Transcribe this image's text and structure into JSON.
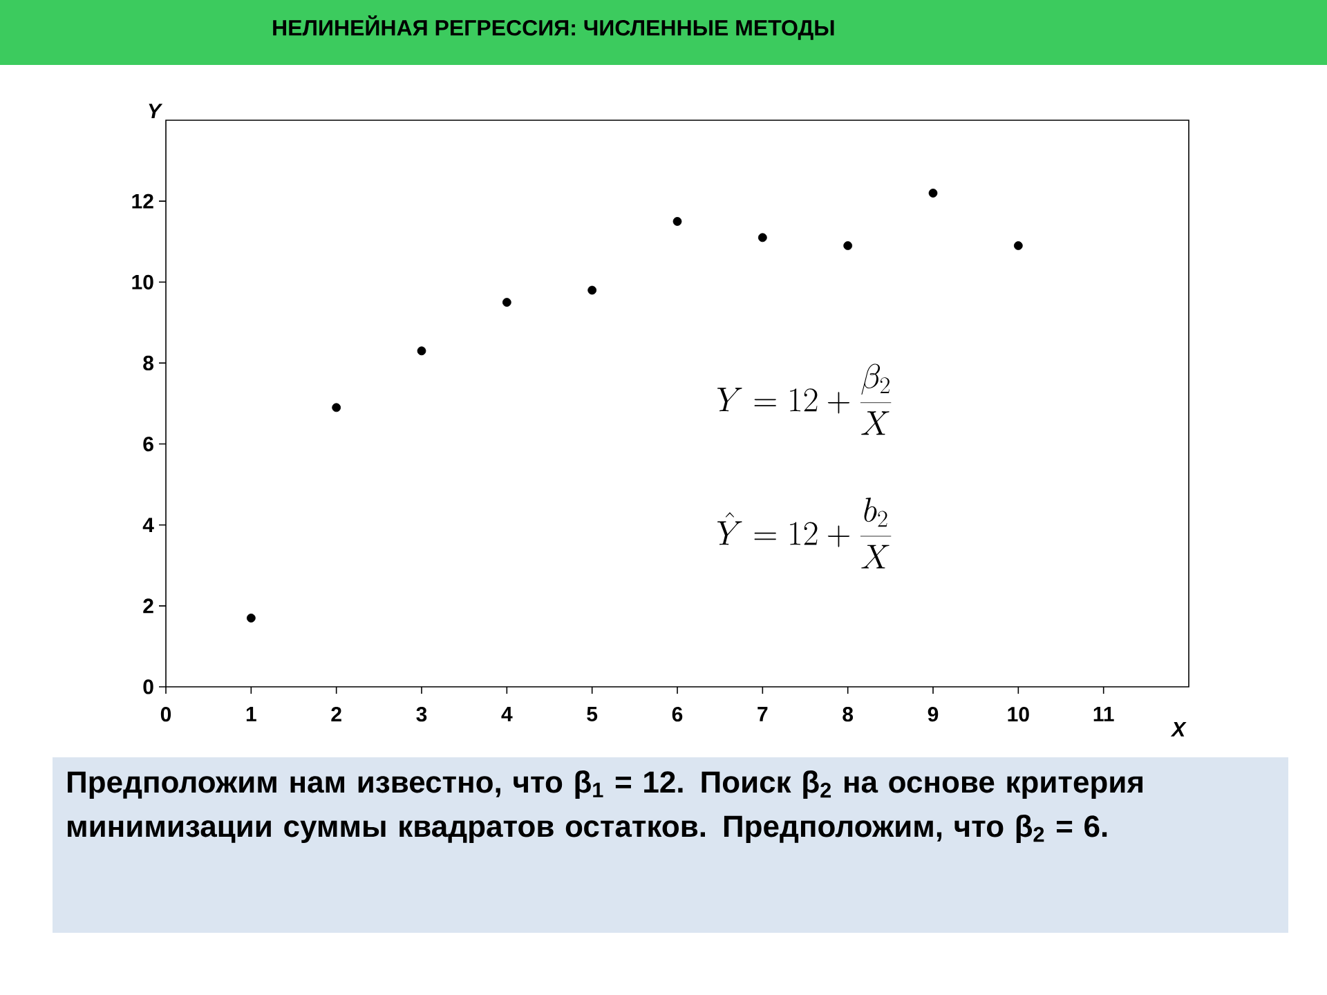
{
  "chart_data": {
    "type": "scatter",
    "title": "НЕЛИНЕЙНАЯ РЕГРЕССИЯ: ЧИСЛЕННЫЕ МЕТОДЫ",
    "xlabel": "X",
    "ylabel": "Y",
    "x": [
      1,
      2,
      3,
      4,
      5,
      6,
      7,
      8,
      9,
      10
    ],
    "values": [
      1.7,
      6.9,
      8.3,
      9.5,
      9.8,
      11.5,
      11.1,
      10.9,
      12.2,
      10.9
    ],
    "color": "#000000",
    "xlim": [
      0,
      12
    ],
    "ylim": [
      0,
      14
    ],
    "xticks": [
      0,
      1,
      2,
      3,
      4,
      5,
      6,
      7,
      8,
      9,
      10,
      11
    ],
    "yticks": [
      0,
      2,
      4,
      6,
      8,
      10,
      12
    ],
    "annotations": [
      "Y = 12 + \\frac{\\beta_2}{X}",
      "\\hat{Y} = 12 + \\frac{b_2}{X}",
      "Предположим нам известно, что β$_{1}$ = 12. Поиск β$_{2}$ на основе критерия минимизации суммы квадратов остатков. Предположим, что β$_{2}$ = 6."
    ]
  }
}
